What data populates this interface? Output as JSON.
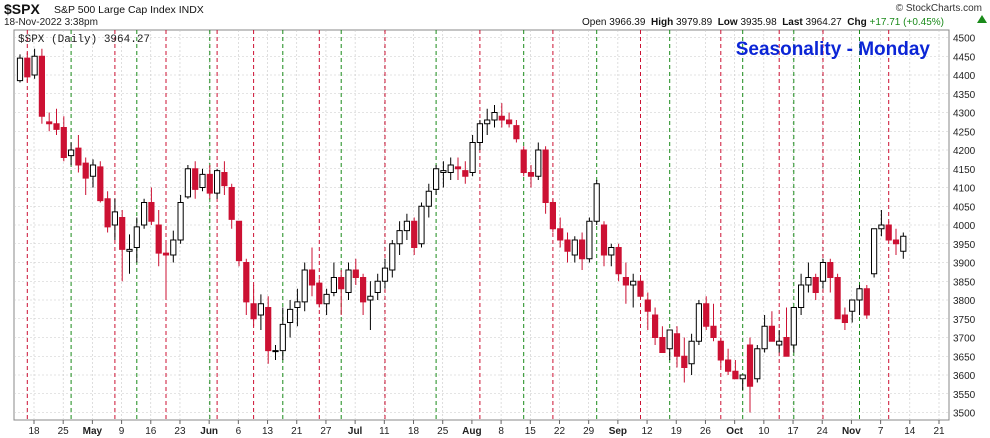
{
  "header": {
    "symbol": "$SPX",
    "name": "S&P 500 Large Cap Index  INDX",
    "timestamp": "18-Nov-2022 3:38pm",
    "brand": "© StockCharts.com",
    "open_label": "Open",
    "open": "3966.39",
    "high_label": "High",
    "high": "3979.89",
    "low_label": "Low",
    "low": "3935.98",
    "last_label": "Last",
    "last": "3964.27",
    "chg_label": "Chg",
    "chg": "+17.71 (+0.45%)"
  },
  "chart_data": {
    "type": "candlestick",
    "legend_label": "$SPX (Daily) 3964.27",
    "annotation": "Seasonality - Monday",
    "ylim": [
      3480,
      4520
    ],
    "y_ticks": [
      3500,
      3550,
      3600,
      3650,
      3700,
      3750,
      3800,
      3850,
      3900,
      3950,
      4000,
      4050,
      4100,
      4150,
      4200,
      4250,
      4300,
      4350,
      4400,
      4450,
      4500
    ],
    "x_ticks": [
      "18",
      "25",
      "May",
      "9",
      "16",
      "23",
      "Jun",
      "6",
      "13",
      "21",
      "27",
      "Jul",
      "11",
      "18",
      "25",
      "Aug",
      "8",
      "15",
      "22",
      "29",
      "Sep",
      "12",
      "19",
      "26",
      "Oct",
      "10",
      "17",
      "24",
      "Nov",
      "7",
      "14",
      "21"
    ],
    "colors": {
      "up": "#000000",
      "down": "#cc1133",
      "seasonal_up": "#1a8a1a",
      "seasonal_down": "#cc1133",
      "annotation": "#0b25d6",
      "grid": "#c8c8c8"
    },
    "ohlc": [
      [
        4385,
        4455,
        4380,
        4445
      ],
      [
        4445,
        4460,
        4380,
        4395
      ],
      [
        4400,
        4470,
        4390,
        4450
      ],
      [
        4450,
        4470,
        4270,
        4290
      ],
      [
        4275,
        4300,
        4250,
        4270
      ],
      [
        4270,
        4310,
        4240,
        4255
      ],
      [
        4260,
        4290,
        4170,
        4180
      ],
      [
        4185,
        4220,
        4160,
        4200
      ],
      [
        4205,
        4240,
        4140,
        4160
      ],
      [
        4165,
        4180,
        4080,
        4125
      ],
      [
        4130,
        4175,
        4100,
        4160
      ],
      [
        4155,
        4170,
        4060,
        4065
      ],
      [
        4070,
        4090,
        3980,
        3995
      ],
      [
        4000,
        4070,
        3960,
        4035
      ],
      [
        4020,
        4040,
        3850,
        3935
      ],
      [
        3930,
        3975,
        3870,
        3935
      ],
      [
        3940,
        4020,
        3900,
        3995
      ],
      [
        4000,
        4070,
        3990,
        4060
      ],
      [
        4060,
        4100,
        4000,
        4010
      ],
      [
        4000,
        4040,
        3890,
        3925
      ],
      [
        3925,
        3960,
        3800,
        3920
      ],
      [
        3920,
        3985,
        3900,
        3960
      ],
      [
        3960,
        4080,
        3950,
        4060
      ],
      [
        4075,
        4160,
        4070,
        4150
      ],
      [
        4150,
        4170,
        4070,
        4095
      ],
      [
        4100,
        4150,
        4090,
        4135
      ],
      [
        4135,
        4160,
        4070,
        4085
      ],
      [
        4085,
        4150,
        4070,
        4145
      ],
      [
        4140,
        4170,
        4080,
        4105
      ],
      [
        4100,
        4110,
        3990,
        4015
      ],
      [
        4010,
        4010,
        3890,
        3905
      ],
      [
        3900,
        3910,
        3760,
        3795
      ],
      [
        3790,
        3840,
        3730,
        3750
      ],
      [
        3760,
        3815,
        3720,
        3790
      ],
      [
        3780,
        3810,
        3630,
        3665
      ],
      [
        3665,
        3680,
        3640,
        3665
      ],
      [
        3665,
        3780,
        3640,
        3735
      ],
      [
        3740,
        3800,
        3700,
        3775
      ],
      [
        3780,
        3830,
        3730,
        3795
      ],
      [
        3795,
        3900,
        3770,
        3880
      ],
      [
        3880,
        3940,
        3810,
        3840
      ],
      [
        3845,
        3855,
        3780,
        3790
      ],
      [
        3790,
        3830,
        3760,
        3815
      ],
      [
        3820,
        3900,
        3810,
        3860
      ],
      [
        3860,
        3880,
        3760,
        3830
      ],
      [
        3820,
        3900,
        3800,
        3880
      ],
      [
        3880,
        3910,
        3840,
        3860
      ],
      [
        3860,
        3870,
        3760,
        3795
      ],
      [
        3800,
        3850,
        3720,
        3810
      ],
      [
        3820,
        3870,
        3800,
        3850
      ],
      [
        3850,
        3910,
        3830,
        3885
      ],
      [
        3880,
        3960,
        3860,
        3950
      ],
      [
        3950,
        4010,
        3920,
        3985
      ],
      [
        3985,
        4030,
        3960,
        4010
      ],
      [
        4010,
        4020,
        3920,
        3940
      ],
      [
        3950,
        4060,
        3940,
        4050
      ],
      [
        4050,
        4110,
        4020,
        4090
      ],
      [
        4095,
        4160,
        4080,
        4150
      ],
      [
        4140,
        4170,
        4100,
        4145
      ],
      [
        4140,
        4180,
        4120,
        4160
      ],
      [
        4155,
        4180,
        4120,
        4150
      ],
      [
        4145,
        4170,
        4110,
        4130
      ],
      [
        4140,
        4240,
        4130,
        4220
      ],
      [
        4220,
        4280,
        4200,
        4270
      ],
      [
        4270,
        4310,
        4240,
        4280
      ],
      [
        4280,
        4320,
        4260,
        4300
      ],
      [
        4290,
        4325,
        4260,
        4280
      ],
      [
        4280,
        4300,
        4260,
        4270
      ],
      [
        4265,
        4280,
        4220,
        4230
      ],
      [
        4200,
        4210,
        4130,
        4140
      ],
      [
        4140,
        4160,
        4100,
        4130
      ],
      [
        4130,
        4220,
        4120,
        4200
      ],
      [
        4200,
        4210,
        4030,
        4060
      ],
      [
        4060,
        4070,
        3980,
        3990
      ],
      [
        3990,
        4020,
        3940,
        3960
      ],
      [
        3960,
        3980,
        3900,
        3930
      ],
      [
        3920,
        3970,
        3900,
        3960
      ],
      [
        3960,
        3980,
        3880,
        3910
      ],
      [
        3910,
        4020,
        3900,
        4010
      ],
      [
        4010,
        4120,
        4000,
        4110
      ],
      [
        4000,
        4010,
        3890,
        3920
      ],
      [
        3920,
        3950,
        3890,
        3940
      ],
      [
        3940,
        3950,
        3850,
        3870
      ],
      [
        3860,
        3900,
        3790,
        3840
      ],
      [
        3840,
        3870,
        3780,
        3850
      ],
      [
        3850,
        3860,
        3800,
        3810
      ],
      [
        3800,
        3820,
        3720,
        3770
      ],
      [
        3760,
        3780,
        3680,
        3700
      ],
      [
        3700,
        3730,
        3660,
        3660
      ],
      [
        3670,
        3720,
        3640,
        3720
      ],
      [
        3710,
        3730,
        3620,
        3650
      ],
      [
        3650,
        3700,
        3580,
        3620
      ],
      [
        3630,
        3710,
        3600,
        3690
      ],
      [
        3690,
        3800,
        3680,
        3790
      ],
      [
        3790,
        3810,
        3720,
        3730
      ],
      [
        3730,
        3790,
        3690,
        3700
      ],
      [
        3690,
        3700,
        3620,
        3640
      ],
      [
        3640,
        3670,
        3600,
        3610
      ],
      [
        3610,
        3640,
        3590,
        3590
      ],
      [
        3590,
        3600,
        3560,
        3600
      ],
      [
        3680,
        3700,
        3500,
        3570
      ],
      [
        3590,
        3680,
        3580,
        3670
      ],
      [
        3670,
        3760,
        3660,
        3730
      ],
      [
        3730,
        3770,
        3690,
        3690
      ],
      [
        3680,
        3720,
        3660,
        3690
      ],
      [
        3700,
        3780,
        3650,
        3650
      ],
      [
        3680,
        3780,
        3660,
        3780
      ],
      [
        3780,
        3870,
        3760,
        3840
      ],
      [
        3840,
        3900,
        3820,
        3860
      ],
      [
        3860,
        3870,
        3800,
        3820
      ],
      [
        3850,
        3910,
        3830,
        3900
      ],
      [
        3900,
        3910,
        3820,
        3860
      ],
      [
        3860,
        3870,
        3750,
        3750
      ],
      [
        3760,
        3780,
        3720,
        3740
      ],
      [
        3770,
        3800,
        3740,
        3800
      ],
      [
        3800,
        3840,
        3760,
        3830
      ],
      [
        3830,
        3840,
        3750,
        3760
      ],
      [
        3870,
        3990,
        3860,
        3990
      ],
      [
        3990,
        4040,
        3970,
        4000
      ],
      [
        4000,
        4010,
        3960,
        3960
      ],
      [
        3960,
        3990,
        3920,
        3950
      ],
      [
        3930,
        3980,
        3910,
        3970
      ]
    ],
    "seasonal_down_columns": [
      1,
      13,
      20,
      27,
      32,
      41,
      50,
      63,
      73,
      85,
      96,
      104,
      110,
      119
    ],
    "seasonal_up_columns": [
      7,
      16,
      26,
      36,
      44,
      57,
      69,
      79,
      89,
      99,
      106,
      115
    ]
  }
}
